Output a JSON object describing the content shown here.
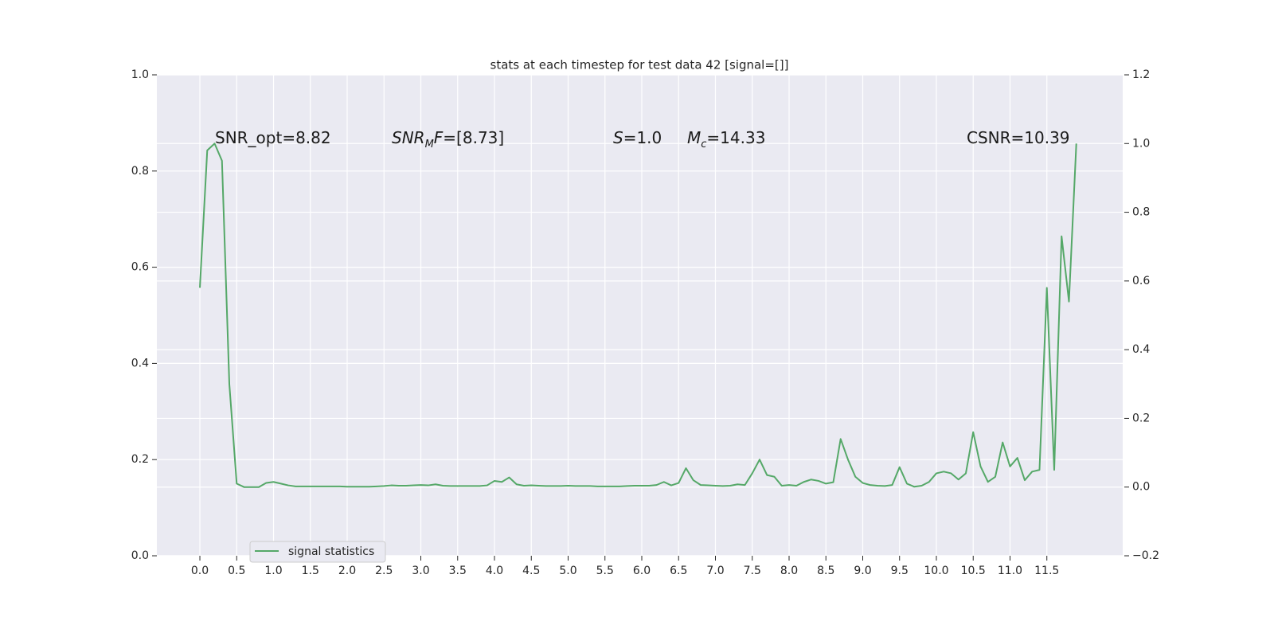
{
  "chart_data": {
    "type": "line",
    "title": "stats at each timestep for test data 42 [signal=[]]",
    "annotations": [
      [
        "SNR_opt=8.82"
      ],
      [
        "SNR",
        "M",
        "F",
        "=[8.73]"
      ],
      [
        "S",
        "=1.0"
      ],
      [
        "M",
        "c",
        "=14.33"
      ],
      [
        "CSNR=10.39"
      ]
    ],
    "x": [
      0,
      0.1,
      0.2,
      0.3,
      0.4,
      0.5,
      0.6,
      0.7,
      0.8,
      0.9,
      1.0,
      1.1,
      1.2,
      1.3,
      1.4,
      1.5,
      1.6,
      1.7,
      1.8,
      1.9,
      2.0,
      2.1,
      2.2,
      2.3,
      2.4,
      2.5,
      2.6,
      2.7,
      2.8,
      2.9,
      3.0,
      3.1,
      3.2,
      3.3,
      3.4,
      3.5,
      3.6,
      3.7,
      3.8,
      3.9,
      4.0,
      4.1,
      4.2,
      4.3,
      4.4,
      4.5,
      4.6,
      4.7,
      4.8,
      4.9,
      5.0,
      5.1,
      5.2,
      5.3,
      5.4,
      5.5,
      5.6,
      5.7,
      5.8,
      5.9,
      6.0,
      6.1,
      6.2,
      6.3,
      6.4,
      6.5,
      6.6,
      6.7,
      6.8,
      6.9,
      7.0,
      7.1,
      7.2,
      7.3,
      7.4,
      7.5,
      7.6,
      7.7,
      7.8,
      7.9,
      8.0,
      8.1,
      8.2,
      8.3,
      8.4,
      8.5,
      8.6,
      8.7,
      8.8,
      8.9,
      9.0,
      9.1,
      9.2,
      9.3,
      9.4,
      9.5,
      9.6,
      9.7,
      9.8,
      9.9,
      10.0,
      10.1,
      10.2,
      10.3,
      10.4,
      10.5,
      10.6,
      10.7,
      10.8,
      10.9,
      11.0,
      11.1,
      11.2,
      11.3,
      11.4,
      11.5,
      11.6,
      11.7,
      11.8,
      11.9
    ],
    "series": [
      {
        "name": "signal statistics",
        "color": "#55a868",
        "axis": "y2",
        "values": [
          0.58,
          0.98,
          1.0,
          0.95,
          0.3,
          0.01,
          0.0,
          0.0,
          0.0,
          0.012,
          0.015,
          0.01,
          0.005,
          0.002,
          0.002,
          0.002,
          0.002,
          0.002,
          0.002,
          0.002,
          0.001,
          0.001,
          0.001,
          0.001,
          0.002,
          0.003,
          0.005,
          0.004,
          0.004,
          0.005,
          0.006,
          0.005,
          0.008,
          0.004,
          0.003,
          0.003,
          0.003,
          0.003,
          0.003,
          0.005,
          0.018,
          0.015,
          0.028,
          0.008,
          0.004,
          0.005,
          0.004,
          0.003,
          0.003,
          0.003,
          0.004,
          0.003,
          0.003,
          0.003,
          0.002,
          0.002,
          0.002,
          0.002,
          0.003,
          0.004,
          0.004,
          0.004,
          0.006,
          0.015,
          0.005,
          0.012,
          0.055,
          0.02,
          0.006,
          0.005,
          0.004,
          0.003,
          0.004,
          0.008,
          0.006,
          0.04,
          0.08,
          0.035,
          0.03,
          0.004,
          0.006,
          0.004,
          0.015,
          0.022,
          0.018,
          0.01,
          0.014,
          0.14,
          0.08,
          0.03,
          0.012,
          0.006,
          0.004,
          0.003,
          0.006,
          0.058,
          0.01,
          0.001,
          0.004,
          0.015,
          0.04,
          0.045,
          0.04,
          0.022,
          0.04,
          0.16,
          0.06,
          0.015,
          0.03,
          0.13,
          0.06,
          0.085,
          0.02,
          0.045,
          0.05,
          0.58,
          0.05,
          0.73,
          0.54,
          1.0
        ]
      }
    ],
    "xlim": [
      -0.584,
      12.53
    ],
    "xticks": [
      {
        "value": 0,
        "label": "0.0"
      },
      0.5,
      {
        "value": 1,
        "label": "1.0"
      },
      1.5,
      {
        "value": 2,
        "label": "2.0"
      },
      2.5,
      {
        "value": 3,
        "label": "3.0"
      },
      3.5,
      {
        "value": 4,
        "label": "4.0"
      },
      4.5,
      {
        "value": 5,
        "label": "5.0"
      },
      5.5,
      {
        "value": 6,
        "label": "6.0"
      },
      6.5,
      {
        "value": 7,
        "label": "7.0"
      },
      7.5,
      {
        "value": 8,
        "label": "8.0"
      },
      8.5,
      {
        "value": 9,
        "label": "9.0"
      },
      9.5,
      {
        "value": 10,
        "label": "10.0"
      },
      10.5,
      {
        "value": 11,
        "label": "11.0"
      },
      11.5
    ],
    "ylim": [
      0,
      1
    ],
    "yticks": [
      {
        "value": 0,
        "label": "0.0"
      },
      0.2,
      0.4,
      0.6,
      0.8,
      {
        "value": 1,
        "label": "1.0"
      }
    ],
    "y2lim": [
      -0.2,
      1.2
    ],
    "y2ticks": [
      {
        "value": -0.2,
        "label": "−0.2"
      },
      {
        "value": 0,
        "label": "0.0"
      },
      0.2,
      0.4,
      0.6,
      0.8,
      {
        "value": 1,
        "label": "1.0"
      },
      1.2
    ],
    "grid": true,
    "legend": "lower left"
  }
}
